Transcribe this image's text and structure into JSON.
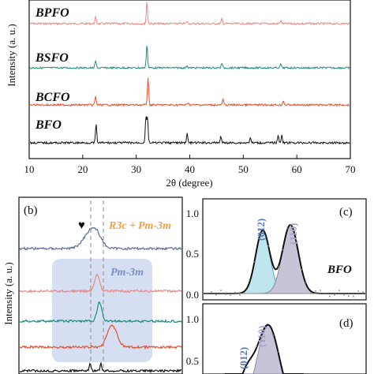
{
  "chart_data": [
    {
      "panel": "a",
      "type": "line",
      "xlabel": "2θ (degree)",
      "ylabel": "Intensity (a. u.)",
      "xlim": [
        10,
        70
      ],
      "xticks": [
        "10",
        "20",
        "30",
        "40",
        "50",
        "60",
        "70"
      ],
      "series": [
        {
          "name": "BPFO",
          "color": "#e88a86",
          "peaks": [
            [
              22.4,
              0.3
            ],
            [
              32.0,
              1.0
            ],
            [
              39.5,
              0.1
            ],
            [
              46.0,
              0.2
            ],
            [
              57.0,
              0.15
            ]
          ]
        },
        {
          "name": "BSFO",
          "color": "#1f8c80",
          "peaks": [
            [
              22.4,
              0.3
            ],
            [
              32.0,
              1.0
            ],
            [
              39.5,
              0.1
            ],
            [
              46.0,
              0.2
            ],
            [
              57.0,
              0.15
            ]
          ]
        },
        {
          "name": "BCFO",
          "color": "#e05030",
          "peaks": [
            [
              22.4,
              0.3
            ],
            [
              32.2,
              1.0
            ],
            [
              39.7,
              0.1
            ],
            [
              46.2,
              0.2
            ],
            [
              57.5,
              0.15
            ]
          ]
        },
        {
          "name": "BFO",
          "color": "#111111",
          "peaks": [
            [
              22.5,
              0.7
            ],
            [
              31.8,
              0.95
            ],
            [
              32.1,
              0.95
            ],
            [
              39.5,
              0.35
            ],
            [
              45.8,
              0.25
            ],
            [
              51.3,
              0.2
            ],
            [
              56.5,
              0.3
            ],
            [
              57.2,
              0.3
            ]
          ]
        }
      ]
    },
    {
      "panel": "b",
      "type": "line",
      "ylabel": "Intensity (a. u.)",
      "annotations": [
        "♥",
        "R3c",
        "+",
        "Pm-3m",
        "Pm-3m"
      ],
      "series": [
        {
          "color": "#5a6e96"
        },
        {
          "color": "#e88a86"
        },
        {
          "color": "#1f8c80"
        },
        {
          "color": "#e05030"
        },
        {
          "color": "#111111"
        }
      ]
    },
    {
      "panel": "c",
      "type": "line",
      "label": "BFO",
      "yticks": [
        "0.0",
        "0.5",
        "1.0"
      ],
      "peak_labels": [
        "(012)",
        "(110)"
      ],
      "fit_peaks": [
        {
          "label": "(012)",
          "height": 0.8
        },
        {
          "label": "(110)",
          "height": 0.87
        }
      ]
    },
    {
      "panel": "d",
      "type": "line",
      "yticks": [
        "0.5",
        "1.0"
      ],
      "peak_labels": [
        "(012)",
        "(110)"
      ]
    }
  ],
  "panel_letters": {
    "a_hidden": "",
    "b": "(b)",
    "c": "(c)",
    "d": "(d)"
  },
  "colors": {
    "bpfo": "#e88a86",
    "bsfo": "#1f8c80",
    "bcfo": "#e05030",
    "bfo": "#111111",
    "blue_trace": "#5a6e96",
    "pm3m_text": "#7a8fc8",
    "r3c_text": "#f0a040",
    "shade": "#c8d4ee",
    "cyan_fill": "#bfe6ef",
    "gray_fill": "#c9c3d8"
  }
}
